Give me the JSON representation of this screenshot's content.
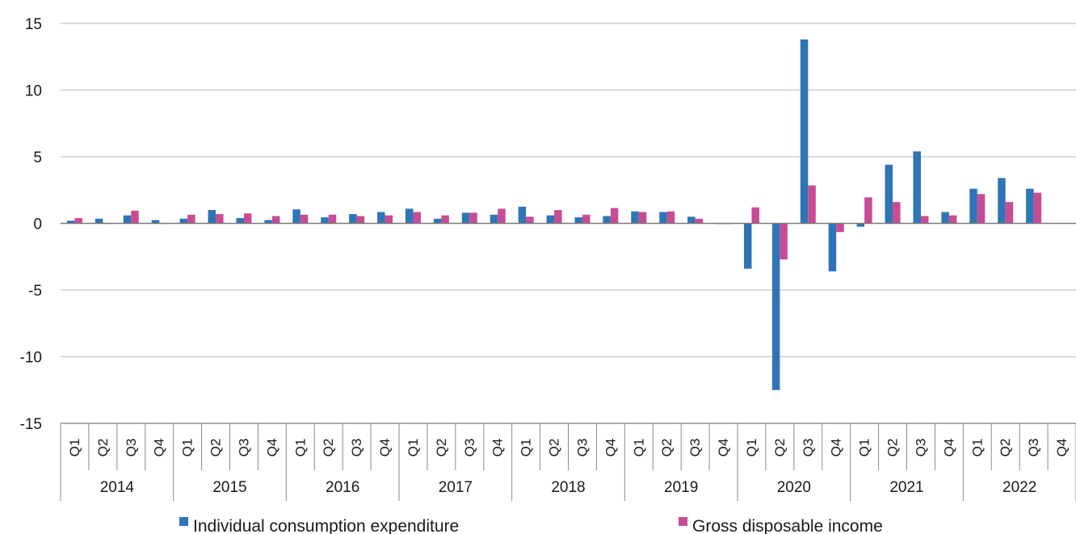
{
  "chart_data": {
    "type": "bar",
    "title": "",
    "xlabel": "",
    "ylabel": "",
    "ylim": [
      -15,
      15
    ],
    "yticks": [
      15,
      10,
      5,
      0,
      -5,
      -10,
      -15
    ],
    "grid": true,
    "legend_position": "bottom",
    "quarters": [
      "Q1",
      "Q2",
      "Q3",
      "Q4"
    ],
    "years": [
      "2014",
      "2015",
      "2016",
      "2017",
      "2018",
      "2019",
      "2020",
      "2021",
      "2022"
    ],
    "series": [
      {
        "name": "Individual consumption expenditure",
        "color": "#2e75b6",
        "values": [
          0.2,
          0.35,
          0.6,
          0.25,
          0.35,
          1.0,
          0.4,
          0.25,
          1.05,
          0.45,
          0.7,
          0.85,
          1.1,
          0.35,
          0.8,
          0.65,
          1.25,
          0.6,
          0.45,
          0.55,
          0.9,
          0.85,
          0.5,
          -0.05,
          -3.4,
          -12.5,
          13.8,
          -3.6,
          -0.25,
          4.4,
          5.4,
          0.85,
          2.6,
          3.4,
          2.6,
          null
        ]
      },
      {
        "name": "Gross disposable income",
        "color": "#c94b96",
        "values": [
          0.4,
          0.0,
          0.95,
          0.0,
          0.65,
          0.7,
          0.75,
          0.55,
          0.65,
          0.65,
          0.55,
          0.6,
          0.85,
          0.6,
          0.8,
          1.1,
          0.5,
          1.0,
          0.65,
          1.15,
          0.85,
          0.9,
          0.35,
          -0.05,
          1.2,
          -2.7,
          2.85,
          -0.65,
          1.95,
          1.6,
          0.55,
          0.6,
          2.2,
          1.6,
          2.3,
          null
        ]
      }
    ]
  }
}
